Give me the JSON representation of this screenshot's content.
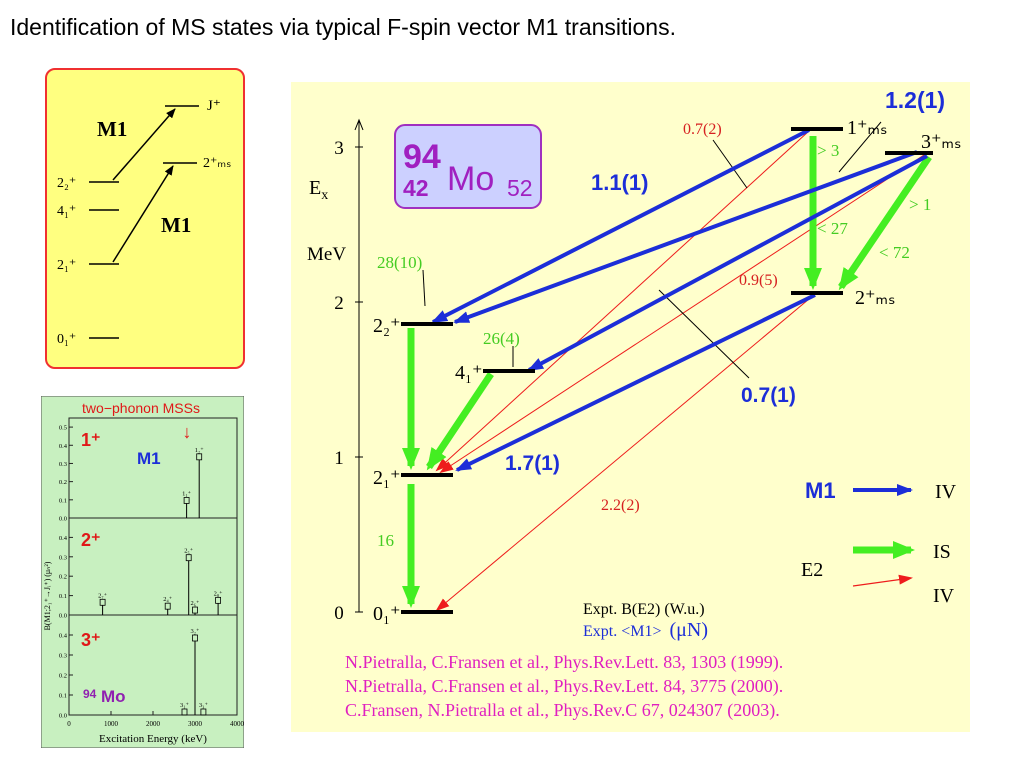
{
  "title": "Identification of MS states via typical F-spin vector M1 transitions.",
  "schematic": {
    "labels": {
      "m1_upper": "M1",
      "m1_lower": "M1",
      "j_plus": "J⁺",
      "two_ms": "2⁺ₘₛ",
      "two_2": "2₂⁺",
      "four_1": "4₁⁺",
      "two_1": "2₁⁺",
      "zero_1": "0₁⁺"
    }
  },
  "mini_plot": {
    "header": "two−phonon MSSs",
    "arrow": "↓",
    "panel1_label": "1⁺",
    "panel1_m1": "M1",
    "panel2_label": "2⁺",
    "panel3_label": "3⁺",
    "nucleus_mass": "94",
    "nucleus_symbol": "Mo",
    "ylabel": "B(M1;2₁⁺→Jᵢ⁺) (μₙ²)",
    "xlabel": "Excitation Energy (keV)",
    "x_ticks": [
      "0",
      "1000",
      "2000",
      "3000",
      "4000"
    ],
    "y_ticks_a": [
      "0.0",
      "0.1",
      "0.2",
      "0.3",
      "0.4",
      "0.5"
    ],
    "y_ticks_b": [
      "0.0",
      "0.1",
      "0.2",
      "0.3",
      "0.4"
    ],
    "y_ticks_c": [
      "0.0",
      "0.1",
      "0.2",
      "0.3",
      "0.4"
    ],
    "panel1_bars": [
      {
        "energy": 2800,
        "value": 0.08,
        "label": "1₁⁺"
      },
      {
        "energy": 3100,
        "value": 0.32,
        "label": "1₂⁺"
      }
    ],
    "panel2_bars": [
      {
        "energy": 800,
        "value": 0.05,
        "label": "2₇⁺"
      },
      {
        "energy": 2350,
        "value": 0.03,
        "label": "2₄⁺"
      },
      {
        "energy": 2850,
        "value": 0.28,
        "label": "2₅⁺"
      },
      {
        "energy": 3000,
        "value": 0.01,
        "label": "2₆⁺"
      },
      {
        "energy": 3550,
        "value": 0.06,
        "label": "2₈⁺"
      }
    ],
    "panel3_bars": [
      {
        "energy": 2750,
        "value": 0.0,
        "label": "3₁⁺"
      },
      {
        "energy": 3000,
        "value": 0.37,
        "label": "3₂⁺"
      },
      {
        "energy": 3200,
        "value": 0.0,
        "label": "3₃⁺"
      }
    ]
  },
  "main": {
    "nucleus": {
      "mass": "94",
      "charge": "42",
      "symbol": "Mo",
      "neutrons": "52"
    },
    "axis": {
      "label": "E",
      "label_sub": "x",
      "unit": "MeV",
      "ticks": [
        "0",
        "1",
        "2",
        "3"
      ]
    },
    "levels": {
      "zero_1": "0₁⁺",
      "two_1": "2₁⁺",
      "two_2": "2₂⁺",
      "four_1": "4₁⁺",
      "two_ms": "2⁺ₘₛ",
      "one_ms": "1⁺ₘₛ",
      "three_ms": "3⁺ₘₛ"
    },
    "values": {
      "v_1_2": "1.2(1)",
      "v_0_7_2": "0.7(2)",
      "v_1_1": "1.1(1)",
      "v_gt3": "> 3",
      "v_gt1": "> 1",
      "v_lt27": "< 27",
      "v_lt72": "< 72",
      "v_28": "28(10)",
      "v_0_9": "0.9(5)",
      "v_26": "26(4)",
      "v_0_7_1": "0.7(1)",
      "v_1_7": "1.7(1)",
      "v_2_2": "2.2(2)",
      "v_16": "16"
    },
    "legend": {
      "m1": "M1",
      "m1_type": "IV",
      "e2": "E2",
      "e2_is": "IS",
      "e2_iv": "IV"
    },
    "expt_be2": "Expt. B(E2)  (W.u.)",
    "expt_m1": "Expt. <M1>",
    "expt_m1_unit": "(μN)",
    "references": [
      "N.Pietralla, C.Fransen et al., Phys.Rev.Lett. 83, 1303 (1999).",
      "N.Pietralla, C.Fransen et al., Phys.Rev.Lett. 84, 3775 (2000).",
      "C.Fransen, N.Pietralla et al., Phys.Rev.C 67, 024307 (2003)."
    ]
  },
  "colors": {
    "m1_blue": "#1c2ed8",
    "e2_green": "#44ee22",
    "e2_red": "#ee1c1c",
    "value_red": "#d62020",
    "ref_magenta": "#e020c0",
    "main_bg": "#ffffcc",
    "plot_bg": "#c8f0c0",
    "nucleus_box": "#ccd0ff",
    "nucleus_border": "#a030c0"
  }
}
